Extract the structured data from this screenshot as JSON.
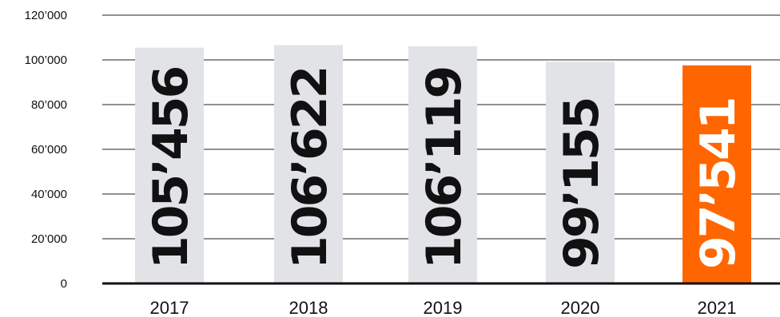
{
  "chart_data": {
    "type": "bar",
    "title": "",
    "xlabel": "",
    "ylabel": "",
    "categories": [
      "2017",
      "2018",
      "2019",
      "2020",
      "2021"
    ],
    "values": [
      105456,
      106622,
      106119,
      99155,
      97541
    ],
    "value_labels": [
      "105’456",
      "106’622",
      "106’119",
      "99’155",
      "97’541"
    ],
    "ylim": [
      0,
      120000
    ],
    "yticks": [
      0,
      20000,
      40000,
      60000,
      80000,
      100000,
      120000
    ],
    "ytick_labels": [
      "0",
      "20’000",
      "40’000",
      "60’000",
      "80’000",
      "100’000",
      "120’000"
    ],
    "grid": true,
    "bar_colors": [
      "#e1e3e6",
      "#e1e3e6",
      "#e1e3e6",
      "#e1e3e6",
      "#ff6600"
    ],
    "label_colors": [
      "#111111",
      "#111111",
      "#111111",
      "#111111",
      "#ffffff"
    ]
  }
}
